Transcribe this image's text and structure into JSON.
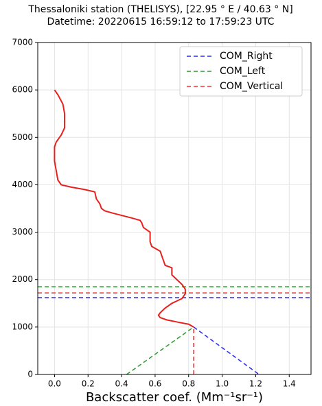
{
  "chart_data": {
    "type": "line",
    "title": "Thessaloniki station (THELISYS), [22.95 ° E / 40.63 ° N]",
    "subtitle": "Datetime: 20220615 16:59:12 to 17:59:23 UTC",
    "x_label": "Backscatter coef. (Mm⁻¹sr⁻¹)",
    "xlim": [
      -0.1,
      1.53
    ],
    "ylim": [
      0,
      7000
    ],
    "xticks": [
      {
        "value": 0,
        "label": "0.0"
      },
      0.2,
      0.4,
      0.6,
      0.8,
      {
        "value": 1,
        "label": "1.0"
      },
      1.2,
      1.4
    ],
    "yticks": [
      0,
      1000,
      2000,
      3000,
      4000,
      5000,
      6000,
      7000
    ],
    "grid": true,
    "legend": "upper right",
    "profile": {
      "color": "#e8201c",
      "x": [
        0.0,
        0.02,
        0.05,
        0.06,
        0.06,
        0.04,
        0.01,
        0.0,
        0.0,
        0.01,
        0.02,
        0.04,
        0.1,
        0.18,
        0.24,
        0.25,
        0.27,
        0.28,
        0.3,
        0.35,
        0.46,
        0.51,
        0.52,
        0.53,
        0.57,
        0.57,
        0.57,
        0.58,
        0.63,
        0.64,
        0.65,
        0.66,
        0.7,
        0.7,
        0.7,
        0.73,
        0.76,
        0.78,
        0.78,
        0.76,
        0.7,
        0.66,
        0.63,
        0.62,
        0.63,
        0.67,
        0.74,
        0.8,
        0.83
      ],
      "y": [
        6000,
        5900,
        5700,
        5500,
        5200,
        5050,
        4900,
        4800,
        4500,
        4300,
        4100,
        4000,
        3950,
        3900,
        3850,
        3700,
        3600,
        3500,
        3450,
        3400,
        3300,
        3250,
        3200,
        3100,
        3000,
        2900,
        2800,
        2700,
        2600,
        2500,
        2400,
        2300,
        2250,
        2200,
        2100,
        2000,
        1900,
        1800,
        1700,
        1600,
        1500,
        1400,
        1300,
        1250,
        1200,
        1150,
        1100,
        1060,
        1000
      ]
    },
    "series": [
      {
        "name": "COM_Right",
        "color": "#2a2af0",
        "altitude": 1620,
        "x": [
          0.83,
          1.22
        ],
        "y": [
          1000,
          0
        ]
      },
      {
        "name": "COM_Left",
        "color": "#2a9a2a",
        "altitude": 1850,
        "x": [
          0.43,
          0.83
        ],
        "y": [
          0,
          1000
        ]
      },
      {
        "name": "COM_Vertical",
        "color": "#f03030",
        "altitude": 1720,
        "x": [
          0.83,
          0.83
        ],
        "y": [
          0,
          1000
        ]
      }
    ]
  }
}
